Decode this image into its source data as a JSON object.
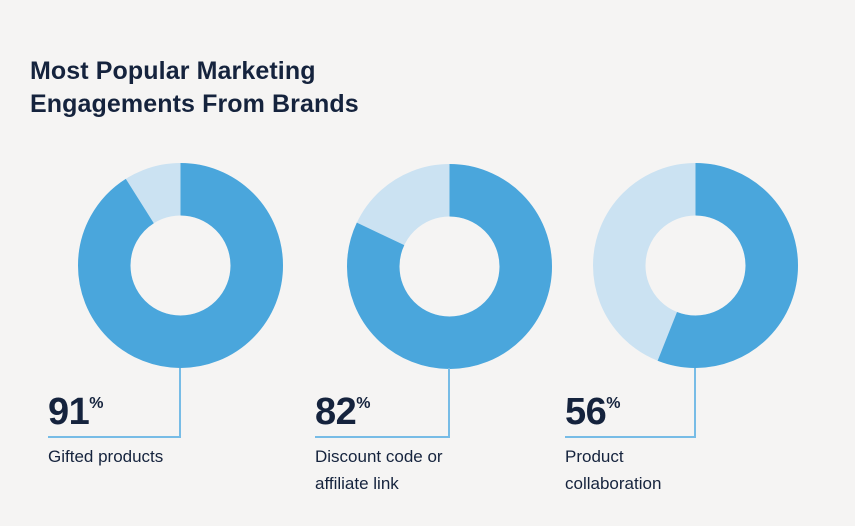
{
  "page": {
    "background": "#F5F4F3"
  },
  "title": {
    "text": "Most Popular Marketing\nEngagements From Brands"
  },
  "chart_data": {
    "type": "pie",
    "subtype": "donut",
    "title": "Most Popular Marketing Engagements From Brands",
    "categories": [
      "Gifted products",
      "Discount code or affiliate link",
      "Product collaboration"
    ],
    "values": [
      91,
      82,
      56
    ],
    "unit": "%",
    "start_angle_deg": 0,
    "direction": "clockwise",
    "hole_ratio": 0.488,
    "legend_position": "none",
    "colors": {
      "primary": "#4AA6DC",
      "remainder": "#CBE2F2",
      "leader_line": "#77BCE6",
      "text": "#15233D"
    }
  },
  "stats": [
    {
      "value": "91",
      "unit": "%",
      "label": "Gifted products"
    },
    {
      "value": "82",
      "unit": "%",
      "label": "Discount code or\naffiliate link"
    },
    {
      "value": "56",
      "unit": "%",
      "label": "Product\ncollaboration"
    }
  ]
}
